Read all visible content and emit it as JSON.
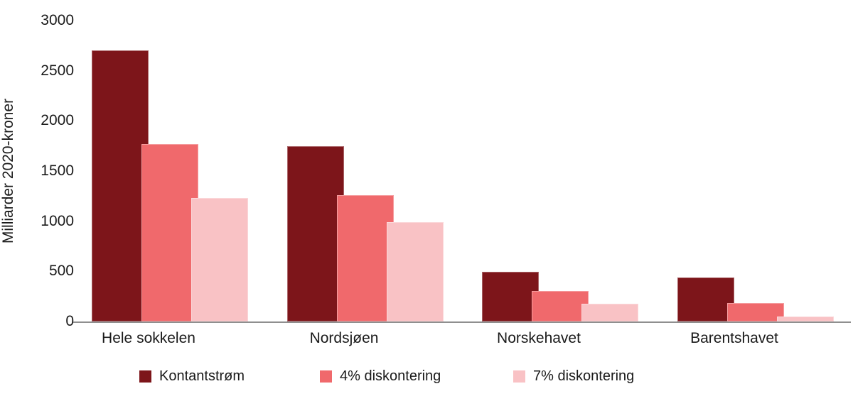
{
  "chart_data": {
    "type": "bar",
    "title": "",
    "ylabel": "Milliarder 2020-kroner",
    "xlabel": "",
    "categories": [
      "Hele sokkelen",
      "Nordsjøen",
      "Norskehavet",
      "Barentshavet"
    ],
    "series": [
      {
        "name": "Kontantstrøm",
        "color": "#7D151A",
        "values": [
          2700,
          1750,
          495,
          440
        ]
      },
      {
        "name": "4% diskontering",
        "color": "#F0696C",
        "values": [
          1770,
          1260,
          305,
          185
        ]
      },
      {
        "name": "7% diskontering",
        "color": "#F9C2C5",
        "values": [
          1230,
          990,
          180,
          50
        ]
      }
    ],
    "yticks": [
      0,
      500,
      1000,
      1500,
      2000,
      2500,
      3000
    ],
    "ylim": [
      0,
      3000
    ],
    "grid": false,
    "legend_position": "bottom",
    "axis_color": "#8F8F8F",
    "text_color": "#1A1A1A",
    "background_color": "#FFFFFF"
  }
}
